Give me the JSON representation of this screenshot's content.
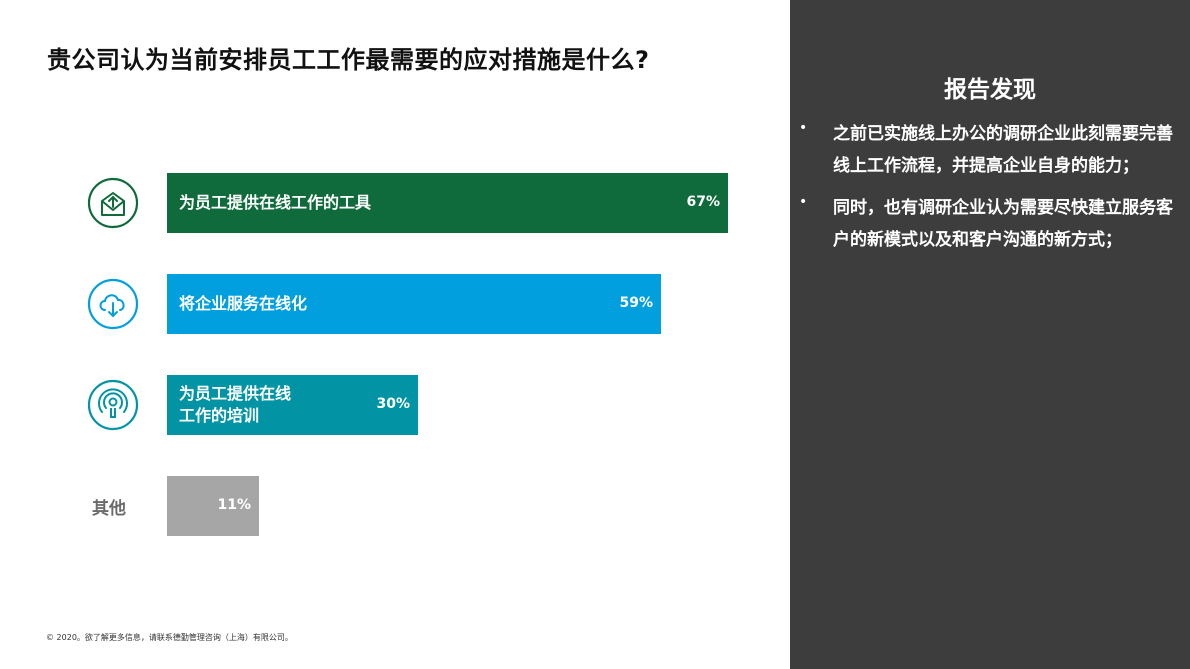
{
  "title": "贵公司认为当前安排员工工作最需要的应对措施是什么?",
  "chart_data": {
    "type": "bar",
    "orientation": "horizontal",
    "title": "贵公司认为当前安排员工工作最需要的应对措施是什么?",
    "categories": [
      "为员工提供在线工作的工具",
      "将企业服务在线化",
      "为员工提供在线工作的培训",
      "其他"
    ],
    "category_lines": [
      [
        "为员工提供在线工作的工具"
      ],
      [
        "将企业服务在线化"
      ],
      [
        "为员工提供在线",
        "工作的培训"
      ],
      [
        "其他"
      ]
    ],
    "values": [
      67,
      59,
      30,
      11
    ],
    "value_labels": [
      "67%",
      "59%",
      "30%",
      "11%"
    ],
    "colors": [
      "#0f6b3b",
      "#019fde",
      "#0294a5",
      "#a6a6a6"
    ],
    "icons": [
      "envelope-upload-icon",
      "cloud-download-icon",
      "podcast-icon",
      ""
    ],
    "icon_colors": [
      "#0f6b3b",
      "#019fde",
      "#0294a5",
      ""
    ],
    "xlim": [
      0,
      100
    ],
    "grid": false,
    "legend": "none"
  },
  "panel": {
    "title": "报告发现",
    "findings": [
      "之前已实施线上办公的调研企业此刻需要完善线上工作流程，并提高企业自身的能力；",
      "同时，也有调研企业认为需要尽快建立服务客户的新模式以及和客户沟通的新方式；"
    ],
    "bullet": "•"
  },
  "footer": "© 2020。欲了解更多信息，请联系德勤管理咨询（上海）有限公司。"
}
